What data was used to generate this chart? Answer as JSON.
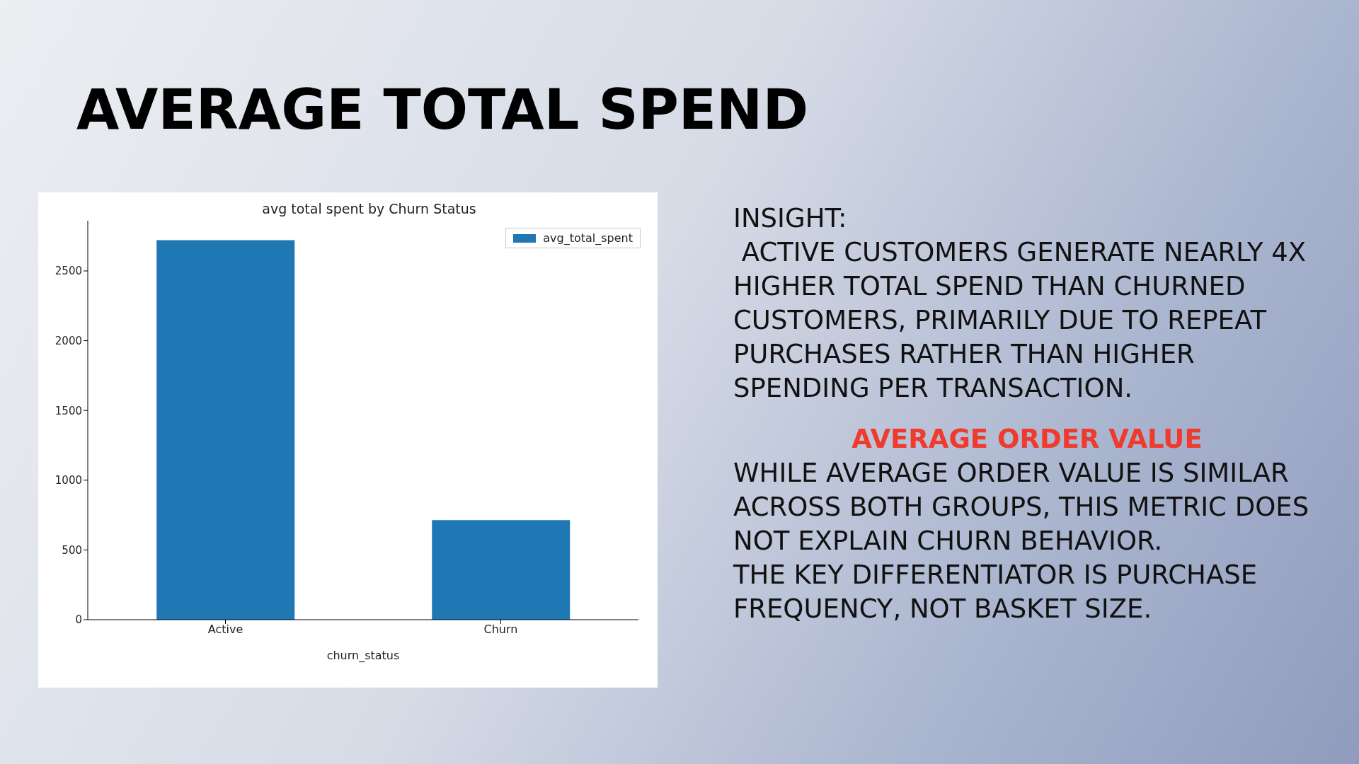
{
  "chart_data": {
    "type": "bar",
    "title": "AVERAGE TOTAL SPEND",
    "subtitle": "avg total spent by Churn Status",
    "xlabel": "churn_status",
    "categories": [
      "Active",
      "Churn"
    ],
    "series": [
      {
        "name": "avg_total_spent",
        "color": "#1f77b4",
        "values": [
          2720,
          714
        ]
      }
    ],
    "ylim": [
      0,
      2860
    ],
    "yticks": [
      0,
      500,
      1000,
      1500,
      2000,
      2500
    ],
    "grid": false,
    "legend": "top right",
    "annotations": [
      "INSIGHT:\n ACTIVE CUSTOMERS GENERATE NEARLY 4X HIGHER TOTAL SPEND THAN CHURNED CUSTOMERS, PRIMARILY DUE TO REPEAT PURCHASES RATHER THAN HIGHER SPENDING PER TRANSACTION.",
      "AVERAGE ORDER VALUE",
      "WHILE AVERAGE ORDER VALUE IS SIMILAR ACROSS BOTH GROUPS, THIS METRIC DOES NOT EXPLAIN CHURN BEHAVIOR.\nTHE KEY DIFFERENTIATOR IS PURCHASE FREQUENCY, NOT BASKET SIZE."
    ]
  }
}
